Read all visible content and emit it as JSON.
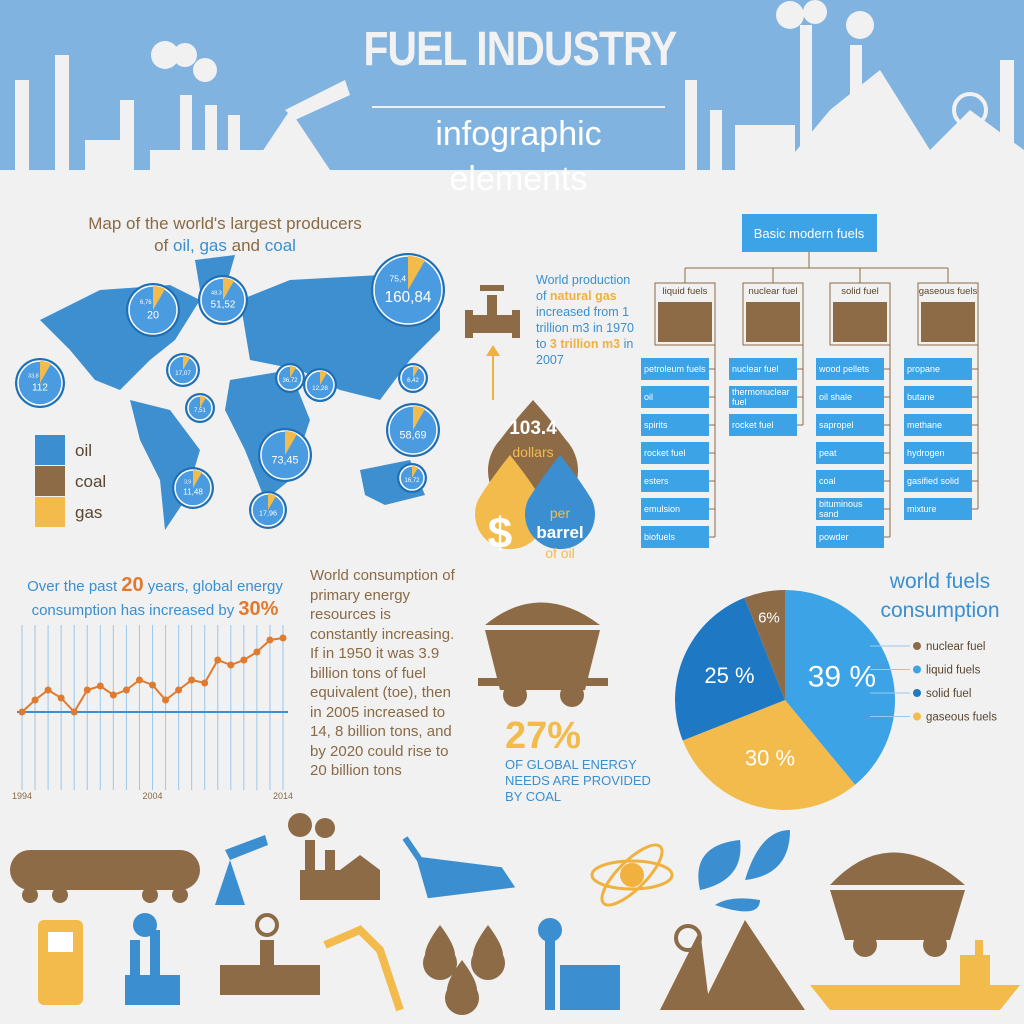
{
  "header": {
    "title": "FUEL INDUSTRY",
    "subtitle": [
      "infographic",
      "elements"
    ]
  },
  "map": {
    "title": [
      "Map of the world's largest producers",
      "of",
      "oil,",
      "gas",
      "and",
      "coal"
    ],
    "bubbles": [
      {
        "labels": [
          "33,8",
          "112"
        ]
      },
      {
        "labels": [
          "6,76",
          "20"
        ]
      },
      {
        "labels": [
          "48,3",
          "51,52"
        ]
      },
      {
        "labels": [
          "75,4",
          "160,84"
        ]
      },
      {
        "labels": [
          "17,07"
        ]
      },
      {
        "labels": [
          "7,51"
        ]
      },
      {
        "labels": [
          "36,72"
        ]
      },
      {
        "labels": [
          "12,28"
        ]
      },
      {
        "labels": [
          "6,42"
        ]
      },
      {
        "labels": [
          "58,69"
        ]
      },
      {
        "labels": [
          "73,45"
        ]
      },
      {
        "labels": [
          "3,9",
          "11,48"
        ]
      },
      {
        "labels": [
          "17,96"
        ]
      },
      {
        "labels": [
          "16,72"
        ]
      }
    ],
    "legend": [
      "oil",
      "coal",
      "gas"
    ]
  },
  "gas_note": [
    "World production of",
    "natural gas",
    "increased from 1 trillion m3 in 1970 to",
    "3 trillion m3",
    "in 2007"
  ],
  "oil_price": {
    "amount": "103.4",
    "unit": "dollars",
    "per": [
      "per",
      "barrel",
      "of oil"
    ]
  },
  "fuel_tree": {
    "root": "Basic modern fuels",
    "groups": [
      {
        "name": "liquid fuels",
        "items": [
          "petroleum fuels",
          "oil",
          "spirits",
          "rocket fuel",
          "esters",
          "emulsion",
          "biofuels"
        ]
      },
      {
        "name": "nuclear fuel",
        "items": [
          "nuclear fuel",
          "thermonuclear fuel",
          "rocket fuel"
        ]
      },
      {
        "name": "solid fuel",
        "items": [
          "wood pellets",
          "oil shale",
          "sapropel",
          "peat",
          "coal",
          "bituminous sand",
          "powder"
        ]
      },
      {
        "name": "gaseous fuels",
        "items": [
          "propane",
          "butane",
          "methane",
          "hydrogen",
          "gasified solid",
          "mixture"
        ]
      }
    ]
  },
  "energy_growth": [
    "Over the past",
    "20",
    "years, global energy consumption has increased by",
    "30%"
  ],
  "primary_energy": "World consumption of primary energy resources  is constantly increasing. If in 1950 it was 3.9 billion tons of fuel equivalent (toe), then in 2005 increased to 14, 8 billion tons, and by 2020 could rise to 20 billion tons",
  "coal": {
    "share": "27%",
    "text": "OF GLOBAL ENERGY NEEDS ARE PROVIDED BY COAL"
  },
  "chart_data": [
    {
      "type": "line",
      "x": [
        1994,
        1995,
        1996,
        1997,
        1998,
        1999,
        2000,
        2001,
        2002,
        2003,
        2004,
        2005,
        2006,
        2007,
        2008,
        2009,
        2010,
        2011,
        2012,
        2013,
        2014
      ],
      "values": [
        78,
        90,
        100,
        92,
        78,
        100,
        104,
        95,
        100,
        110,
        105,
        90,
        100,
        110,
        107,
        130,
        125,
        130,
        138,
        150,
        152
      ],
      "xlim": [
        1994,
        2014
      ],
      "xticks": [
        1994,
        2004,
        2014
      ],
      "ylim": [
        0,
        170
      ],
      "color": "#e07a2e",
      "grid": true
    },
    {
      "type": "pie",
      "title": "world fuels consumption",
      "categories": [
        "nuclear fuel",
        "liquid fuels",
        "solid fuel",
        "gaseous fuels"
      ],
      "values": [
        6,
        39,
        25,
        30
      ],
      "value_labels": [
        "6%",
        "39 %",
        "25 %",
        "30 %"
      ],
      "colors": [
        "#8d6b47",
        "#3ba3e6",
        "#1f78c4",
        "#f2bb4c"
      ],
      "legend": "right"
    }
  ]
}
